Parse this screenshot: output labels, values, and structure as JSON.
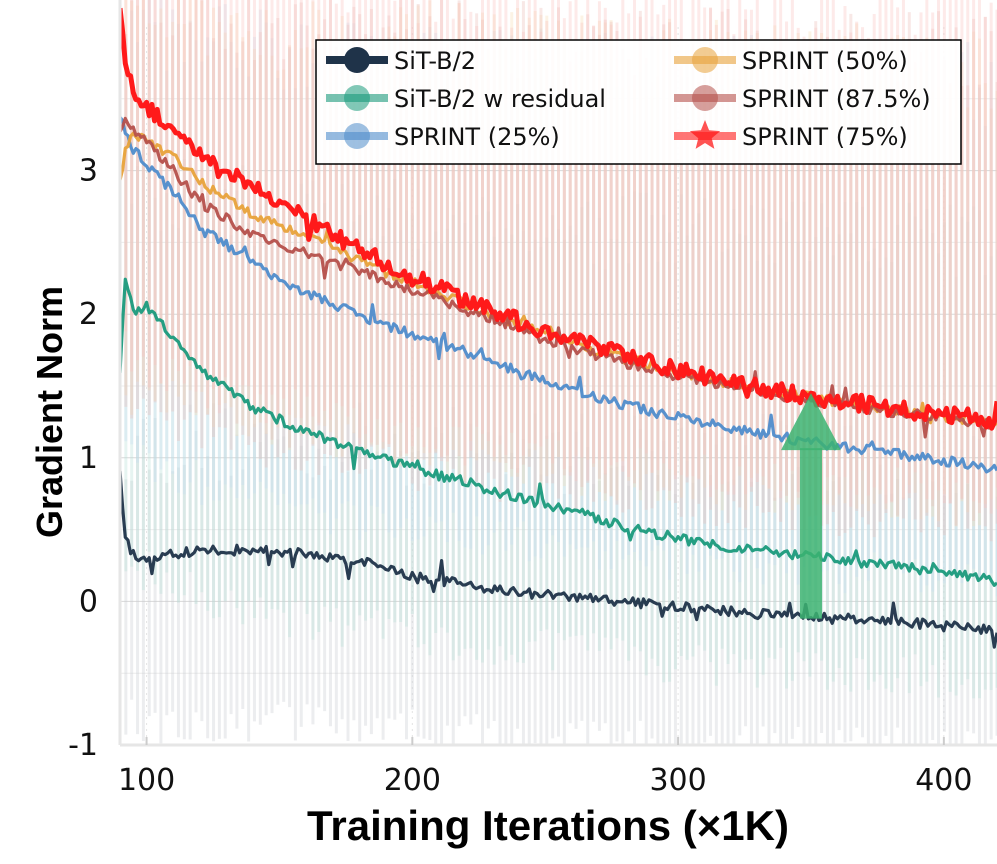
{
  "chart_data": {
    "type": "line",
    "title": "",
    "xlabel": "Training Iterations (×1K)",
    "ylabel": "Gradient Norm",
    "xlim": [
      90,
      420
    ],
    "ylim": [
      -1,
      4
    ],
    "x_ticks": [
      100,
      200,
      300,
      400
    ],
    "y_ticks": [
      -1,
      0,
      1,
      2,
      3
    ],
    "y_tick_labels": [
      "-1",
      "0",
      "1",
      "2",
      "3"
    ],
    "grid": true,
    "legend_position": "top-right",
    "series": [
      {
        "name": "SiT-B/2",
        "color": "#1f3349",
        "marker": "circle",
        "band_color": "#c9ccd2",
        "band_lo": -0.9,
        "band_hi": 0.7,
        "x": [
          90,
          92,
          95,
          100,
          110,
          120,
          140,
          160,
          180,
          200,
          220,
          240,
          260,
          280,
          300,
          320,
          340,
          360,
          380,
          400,
          420
        ],
        "values": [
          0.9,
          0.45,
          0.32,
          0.3,
          0.33,
          0.35,
          0.36,
          0.33,
          0.28,
          0.18,
          0.12,
          0.06,
          0.03,
          0.0,
          -0.04,
          -0.07,
          -0.1,
          -0.12,
          -0.14,
          -0.17,
          -0.2
        ]
      },
      {
        "name": "SiT-B/2 w residual",
        "color": "#1a9a7c",
        "marker": "circle",
        "band_color": "#b6e0d8",
        "band_lo": -0.4,
        "band_hi": 2.2,
        "x": [
          90,
          92,
          95,
          100,
          110,
          120,
          140,
          160,
          180,
          200,
          220,
          240,
          260,
          280,
          300,
          320,
          340,
          360,
          380,
          400,
          420
        ],
        "values": [
          1.6,
          2.25,
          2.0,
          2.05,
          1.85,
          1.62,
          1.35,
          1.18,
          1.05,
          0.93,
          0.83,
          0.72,
          0.63,
          0.52,
          0.44,
          0.38,
          0.33,
          0.29,
          0.25,
          0.2,
          0.14
        ]
      },
      {
        "name": "SPRINT (25%)",
        "color": "#4f8ccb",
        "marker": "circle",
        "band_color": "#c6dcf0",
        "band_lo": 0.3,
        "band_hi": 3.3,
        "x": [
          90,
          92,
          95,
          100,
          110,
          120,
          140,
          160,
          180,
          200,
          220,
          240,
          260,
          280,
          300,
          320,
          340,
          360,
          380,
          400,
          420
        ],
        "values": [
          3.4,
          3.25,
          3.15,
          3.05,
          2.85,
          2.62,
          2.35,
          2.15,
          1.99,
          1.86,
          1.74,
          1.6,
          1.47,
          1.37,
          1.28,
          1.2,
          1.14,
          1.08,
          1.03,
          0.98,
          0.94
        ]
      },
      {
        "name": "SPRINT (50%)",
        "color": "#e8a23a",
        "marker": "circle",
        "band_color": "#f7dcb4",
        "band_lo": 0.8,
        "band_hi": 3.4,
        "x": [
          90,
          92,
          95,
          100,
          110,
          120,
          140,
          160,
          180,
          200,
          220,
          240,
          260,
          280,
          300,
          320,
          340,
          360,
          380,
          400,
          420
        ],
        "values": [
          2.9,
          3.15,
          3.25,
          3.22,
          3.1,
          2.92,
          2.7,
          2.55,
          2.38,
          2.22,
          2.07,
          1.93,
          1.8,
          1.69,
          1.6,
          1.52,
          1.45,
          1.39,
          1.34,
          1.29,
          1.24
        ]
      },
      {
        "name": "SPRINT (87.5%)",
        "color": "#b5504b",
        "marker": "circle",
        "band_color": "#ecbcb6",
        "band_lo": 0.7,
        "band_hi": 3.5,
        "x": [
          90,
          92,
          95,
          100,
          110,
          120,
          140,
          160,
          180,
          200,
          220,
          240,
          260,
          280,
          300,
          320,
          340,
          360,
          380,
          400,
          420
        ],
        "values": [
          3.3,
          3.35,
          3.3,
          3.2,
          3.0,
          2.78,
          2.55,
          2.42,
          2.3,
          2.17,
          2.03,
          1.89,
          1.76,
          1.66,
          1.57,
          1.5,
          1.43,
          1.37,
          1.32,
          1.28,
          1.23
        ]
      },
      {
        "name": "SPRINT (75%)",
        "color": "#ff1a1a",
        "marker": "star",
        "band_color": "#f9c3bf",
        "band_lo": 0.9,
        "band_hi": 3.8,
        "x": [
          90,
          92,
          95,
          100,
          110,
          120,
          140,
          160,
          180,
          200,
          220,
          240,
          260,
          280,
          300,
          320,
          340,
          360,
          380,
          400,
          420
        ],
        "values": [
          4.1,
          3.75,
          3.55,
          3.45,
          3.28,
          3.1,
          2.88,
          2.66,
          2.45,
          2.26,
          2.1,
          1.95,
          1.82,
          1.71,
          1.61,
          1.53,
          1.46,
          1.4,
          1.35,
          1.3,
          1.26
        ]
      }
    ],
    "annotations": [
      {
        "type": "arrow",
        "color": "#3cb371",
        "x": 350,
        "y_from": -0.12,
        "y_to": 1.45
      }
    ]
  }
}
